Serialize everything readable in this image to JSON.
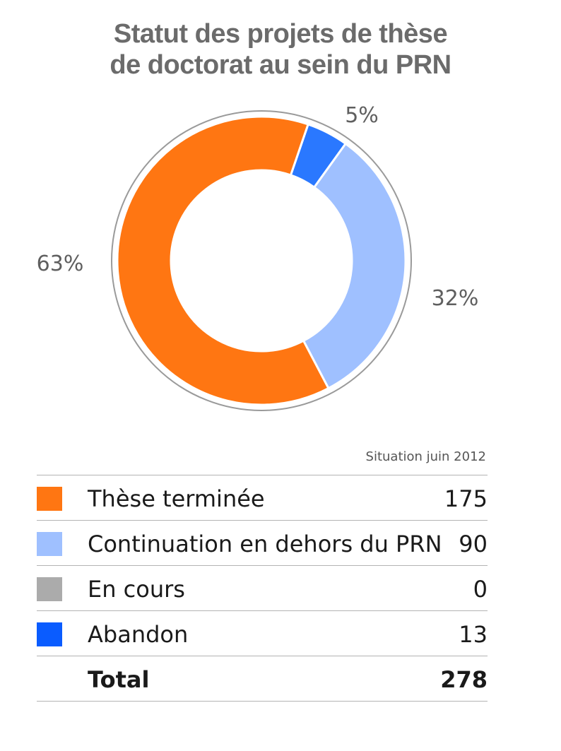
{
  "title_line1": "Statut des projets de thèse",
  "title_line2": "de doctorat au sein du PRN",
  "caption": "Situation juin 2012",
  "chart_data": {
    "type": "pie",
    "variant": "donut",
    "title": "Statut des projets de thèse de doctorat au sein du PRN",
    "slices": [
      {
        "name": "Abandon",
        "value": 13,
        "percent_label": "5%",
        "color": "#2a78ff"
      },
      {
        "name": "Continuation en dehors du PRN",
        "value": 90,
        "percent_label": "32%",
        "color": "#9fc0ff"
      },
      {
        "name": "En cours",
        "value": 0,
        "percent_label": "",
        "color": "#ababab"
      },
      {
        "name": "Thèse terminée",
        "value": 175,
        "percent_label": "63%",
        "color": "#ff7612"
      }
    ],
    "total": 278
  },
  "legend": [
    {
      "label": "Thèse terminée",
      "value": "175",
      "color": "#ff7612"
    },
    {
      "label": "Continuation en dehors du PRN",
      "value": "90",
      "color": "#9fc0ff"
    },
    {
      "label": "En cours",
      "value": "0",
      "color": "#ababab"
    },
    {
      "label": "Abandon",
      "value": "13",
      "color": "#0a5cff"
    }
  ],
  "total_row": {
    "label": "Total",
    "value": "278"
  }
}
